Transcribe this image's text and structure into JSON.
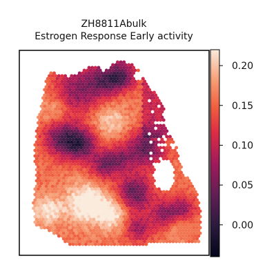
{
  "chart_data": {
    "type": "heatmap",
    "title": "ZH8811Abulk",
    "subtitle": "Estrogen Response Early activity",
    "xlabel": "",
    "ylabel": "",
    "grid": false,
    "colormap": "rocket",
    "colorbar": {
      "vmin": -0.04,
      "vmax": 0.22,
      "ticks": [
        0.0,
        0.05,
        0.1,
        0.15,
        0.2
      ],
      "tick_labels": [
        "0.00",
        "0.05",
        "0.10",
        "0.15",
        "0.20"
      ]
    },
    "colors": {
      "low": "#03051a",
      "mid_low": "#4c1d4b",
      "mid": "#a11a5b",
      "mid_high": "#e83f3f",
      "high": "#f69c73",
      "top": "#faebdd"
    }
  }
}
